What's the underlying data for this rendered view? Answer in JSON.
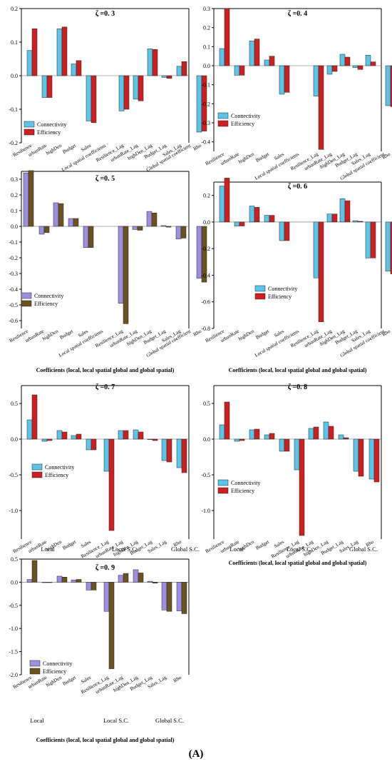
{
  "figure_label": "(A)",
  "chart_data": [
    {
      "type": "bar",
      "title": "ζ =0. 3",
      "categories": [
        "Resilience",
        "urbanRate",
        "highDen",
        "Budget",
        "Sales",
        "Local spatial coefficients",
        "Resilience_Lag",
        "urbanRate_Lag",
        "highDen_Lag",
        "Budget_Lag",
        "Sales_Lag",
        "Global spatial coefficient",
        "Rho"
      ],
      "ylim": [
        -0.2,
        0.2
      ],
      "ticks": [
        -0.2,
        -0.1,
        0.0,
        0.1,
        0.2
      ],
      "legend_position": "bottom-left",
      "series": [
        {
          "name": "Connectivity",
          "color": "#5bc5e8",
          "values": [
            0.075,
            -0.065,
            0.14,
            0.035,
            -0.135,
            null,
            -0.105,
            -0.07,
            0.08,
            -0.005,
            0.028,
            null,
            -0.168
          ]
        },
        {
          "name": "Efficiency",
          "color": "#cc1f1f",
          "values": [
            0.14,
            -0.065,
            0.145,
            0.045,
            -0.14,
            null,
            -0.1,
            -0.075,
            0.078,
            -0.008,
            0.042,
            null,
            -0.165
          ]
        }
      ],
      "group_labels": [],
      "xlabel": ""
    },
    {
      "type": "bar",
      "title": "ζ =0. 4",
      "categories": [
        "Resilience",
        "urbanRate",
        "highDen",
        "Budget",
        "Sales",
        "Local spatial coefficients",
        "Resilience_Lag",
        "urbanRate_Lag",
        "highDen_Lag",
        "Budget_Lag",
        "Sales_Lag",
        "Global spatial coefficient",
        "Rho"
      ],
      "ylim": [
        -0.45,
        0.3
      ],
      "ticks": [
        -0.4,
        -0.3,
        -0.2,
        -0.1,
        0.0,
        0.1,
        0.2,
        0.3
      ],
      "legend_position": "bottom-left",
      "series": [
        {
          "name": "Connectivity",
          "color": "#5bc5e8",
          "values": [
            0.09,
            -0.05,
            0.13,
            0.03,
            -0.15,
            null,
            -0.16,
            -0.045,
            0.06,
            -0.01,
            0.055,
            null,
            -0.21
          ]
        },
        {
          "name": "Efficiency",
          "color": "#cc1f1f",
          "values": [
            0.3,
            -0.05,
            0.14,
            0.05,
            -0.14,
            null,
            -0.44,
            -0.03,
            0.045,
            -0.02,
            0.02,
            null,
            -0.215
          ]
        }
      ],
      "group_labels": [],
      "xlabel": ""
    },
    {
      "type": "bar",
      "title": "ζ =0.  5",
      "categories": [
        "Resilience",
        "urbanRate",
        "highDen",
        "Budget",
        "Sales",
        "Local spatial coefficients",
        "Resilience_Lag",
        "urbanRate_Lag",
        "highDen_Lag",
        "Budget_Lag",
        "Sales_Lag",
        "Global spatial coefficient",
        "Rho"
      ],
      "ylim": [
        -0.65,
        0.35
      ],
      "ticks": [
        -0.6,
        -0.5,
        -0.4,
        -0.3,
        -0.2,
        -0.1,
        0.0,
        0.1,
        0.2,
        0.3
      ],
      "legend_position": "bottom-left",
      "series": [
        {
          "name": "Connectivity",
          "color": "#9f8fe0",
          "values": [
            0.34,
            -0.05,
            0.15,
            0.05,
            -0.135,
            null,
            -0.49,
            -0.02,
            0.095,
            0.005,
            -0.08,
            null,
            -0.33
          ]
        },
        {
          "name": "Efficiency",
          "color": "#6b5220",
          "values": [
            0.355,
            -0.04,
            0.145,
            0.05,
            -0.135,
            null,
            -0.62,
            -0.025,
            0.085,
            -0.005,
            -0.075,
            null,
            -0.355
          ]
        }
      ],
      "group_labels": [],
      "xlabel": "Coefficients (local, local spatial global and global spatial)"
    },
    {
      "type": "bar",
      "title": "ζ =0.  6",
      "categories": [
        "Resilience",
        "urbanRate",
        "highDen",
        "Budget",
        "Sales",
        "Local spatial coefficients",
        "Resilience_Lag",
        "urbanRate_Lag",
        "highDen_Lag",
        "Budget_Lag",
        "Sales_Lag",
        "Global spatial coefficient",
        "Rho"
      ],
      "ylim": [
        -0.8,
        0.3
      ],
      "ticks": [
        -0.8,
        -0.6,
        -0.4,
        -0.2,
        0.0,
        0.2
      ],
      "legend_position": "bottom-right",
      "series": [
        {
          "name": "Connectivity",
          "color": "#5bc5e8",
          "values": [
            0.27,
            -0.03,
            0.12,
            0.05,
            -0.14,
            null,
            -0.42,
            0.06,
            0.175,
            0.01,
            -0.27,
            null,
            -0.37
          ]
        },
        {
          "name": "Efficiency",
          "color": "#cc1f1f",
          "values": [
            0.33,
            -0.03,
            0.11,
            0.05,
            -0.14,
            null,
            -0.75,
            0.06,
            0.16,
            0.005,
            -0.27,
            null,
            -0.39
          ]
        }
      ],
      "group_labels": [],
      "xlabel": "Coefficients (local, local spatial global and global spatial)"
    },
    {
      "type": "bar",
      "title": "ζ =0.  7",
      "categories": [
        "Resilience",
        "urbanRate",
        "highDen",
        "Budget",
        "Sales",
        "Resilience_Lag",
        "urbanRate_Lag",
        "highDen_Lag",
        "Budget_Lag",
        "Sales_Lag",
        "Rho"
      ],
      "ylim": [
        -1.4,
        0.75
      ],
      "ticks": [
        -1.0,
        -0.5,
        0.0,
        0.5
      ],
      "legend_position": "bottom-left",
      "series": [
        {
          "name": "Connectivity",
          "color": "#5bc5e8",
          "values": [
            0.27,
            -0.03,
            0.12,
            0.05,
            -0.15,
            -0.45,
            0.12,
            0.13,
            0.0,
            -0.3,
            -0.4
          ]
        },
        {
          "name": "Efficiency",
          "color": "#cc1f1f",
          "values": [
            0.62,
            -0.02,
            0.1,
            0.07,
            -0.15,
            -1.28,
            0.12,
            0.1,
            -0.02,
            -0.32,
            -0.47
          ]
        }
      ],
      "group_labels": [
        "Local",
        "Local S.C.",
        "Global S.C."
      ],
      "xlabel": ""
    },
    {
      "type": "bar",
      "title": "ζ =0. 8",
      "categories": [
        "Resilience",
        "urbanRate",
        "highDen",
        "Budget",
        "Sales",
        "Resilience_Lag",
        "urbanRate_Lag",
        "highDen_Lag",
        "Budget_Lag",
        "Sales_Lag",
        "Rho"
      ],
      "ylim": [
        -1.4,
        0.75
      ],
      "ticks": [
        -1.0,
        -0.5,
        0.0,
        0.5
      ],
      "legend_position": "bottom-left",
      "series": [
        {
          "name": "Connectivity",
          "color": "#5bc5e8",
          "values": [
            0.2,
            -0.03,
            0.13,
            0.06,
            -0.17,
            -0.43,
            0.15,
            0.24,
            0.06,
            -0.45,
            -0.56
          ]
        },
        {
          "name": "Efficiency",
          "color": "#cc1f1f",
          "values": [
            0.52,
            -0.02,
            0.14,
            0.08,
            -0.17,
            -1.35,
            0.17,
            0.18,
            0.02,
            -0.52,
            -0.6
          ]
        }
      ],
      "group_labels": [
        "Local",
        "Local S.C.",
        "Global S.C."
      ],
      "xlabel": "Coefficients (local, local spatial global and global spatial)"
    },
    {
      "type": "bar",
      "title": "ζ =0. 9",
      "categories": [
        "Resilience",
        "urbanRate",
        "highDen",
        "Budget",
        "Sales",
        "Resilience_Lag",
        "urbanRate_Lag",
        "highDen_Lag",
        "Budget_Lag",
        "Sales_Lag",
        "Rho"
      ],
      "ylim": [
        -2.0,
        0.5
      ],
      "ticks": [
        -2.0,
        -1.5,
        -1.0,
        -0.5,
        0.0,
        0.5
      ],
      "legend_position": "bottom-left",
      "series": [
        {
          "name": "Connectivity",
          "color": "#9f8fe0",
          "values": [
            0.06,
            0.0,
            0.13,
            0.05,
            -0.17,
            -0.63,
            0.15,
            0.27,
            0.02,
            -0.6,
            -0.62
          ]
        },
        {
          "name": "Efficiency",
          "color": "#6b5220",
          "values": [
            0.47,
            0.0,
            0.11,
            0.06,
            -0.17,
            -1.87,
            0.19,
            0.2,
            -0.02,
            -0.63,
            -0.68
          ]
        }
      ],
      "group_labels": [
        "Local",
        "Local S.C.",
        "Global S.C."
      ],
      "xlabel": "Coefficients (local, local spatial global and global spatial)"
    }
  ]
}
